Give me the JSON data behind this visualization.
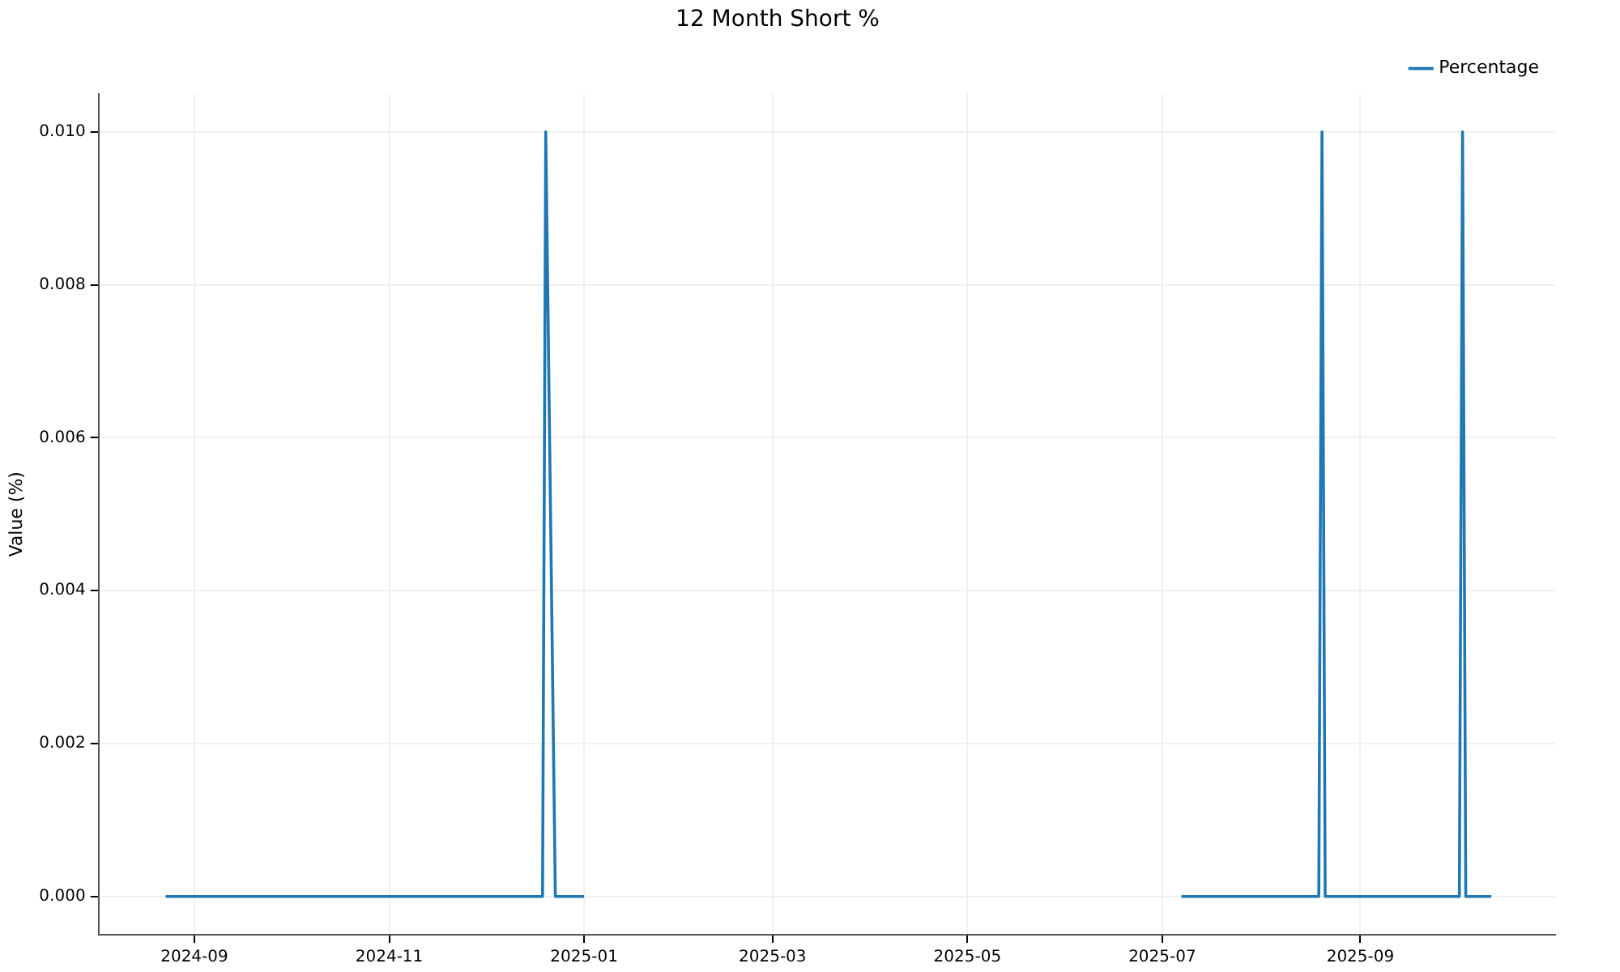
{
  "chart_data": {
    "type": "line",
    "title": "12 Month Short %",
    "ylabel": "Value (%)",
    "xlim": [
      "2024-08-02",
      "2025-11-01"
    ],
    "xticks": [
      {
        "value": "2024-09-01",
        "label": "2024-09"
      },
      {
        "value": "2024-11-01",
        "label": "2024-11"
      },
      {
        "value": "2025-01-01",
        "label": "2025-01"
      },
      {
        "value": "2025-03-01",
        "label": "2025-03"
      },
      {
        "value": "2025-05-01",
        "label": "2025-05"
      },
      {
        "value": "2025-07-01",
        "label": "2025-07"
      },
      {
        "value": "2025-09-01",
        "label": "2025-09"
      }
    ],
    "ylim": [
      -0.0005,
      0.0105
    ],
    "yticks": [
      {
        "value": 0,
        "label": "0.000"
      },
      {
        "value": 0.002,
        "label": "0.002"
      },
      {
        "value": 0.004,
        "label": "0.004"
      },
      {
        "value": 0.006,
        "label": "0.006"
      },
      {
        "value": 0.008,
        "label": "0.008"
      },
      {
        "value": 0.01,
        "label": "0.010"
      }
    ],
    "grid": true,
    "legend": "top right",
    "marker": "none",
    "line_style": "solid",
    "series": [
      {
        "name": "Percentage",
        "color": "#1f77b4",
        "x": [
          "2024-08-23",
          "2024-12-19",
          "2024-12-20",
          "2024-12-23",
          "2025-01-01",
          "2025-04-01",
          "2025-07-07",
          "2025-08-19",
          "2025-08-20",
          "2025-08-21",
          "2025-10-02",
          "2025-10-03",
          "2025-10-04",
          "2025-10-12"
        ],
        "values": [
          0,
          0,
          0.01,
          0,
          0,
          null,
          0,
          0,
          0.01,
          0,
          0,
          0.01,
          0,
          0
        ]
      }
    ]
  }
}
